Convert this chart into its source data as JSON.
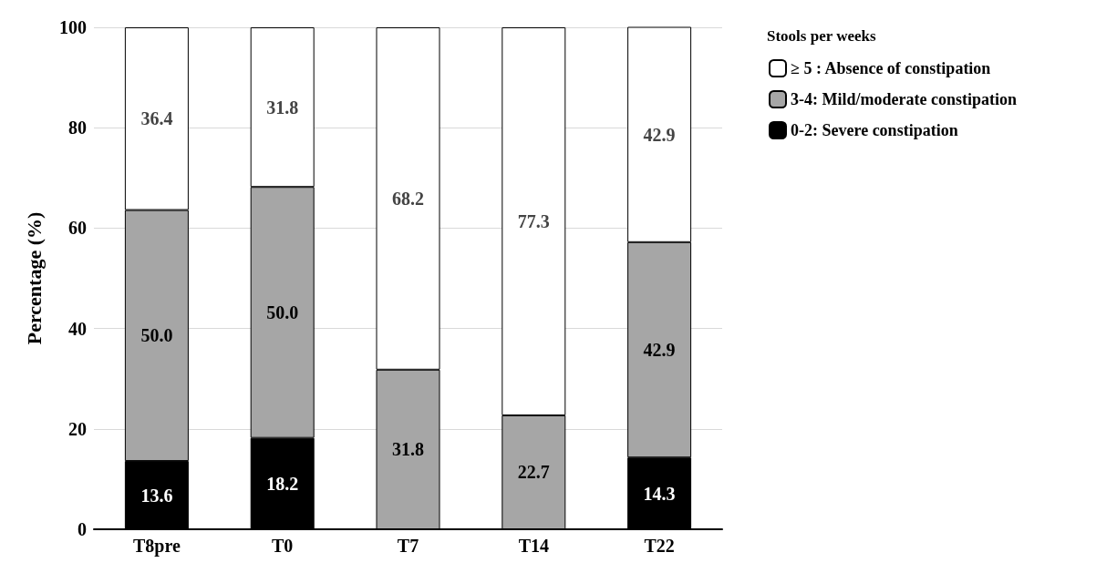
{
  "chart_data": {
    "type": "bar",
    "stacked": true,
    "ylabel": "Percentage (%)",
    "legend_title": "Stools per weeks",
    "legend": "top right",
    "grid": "y",
    "categories": [
      "T8pre",
      "T0",
      "T7",
      "T14",
      "T22"
    ],
    "ylim": [
      0,
      100
    ],
    "yticks": [
      0,
      20,
      40,
      60,
      80,
      100
    ],
    "series": [
      {
        "name": "0-2: Severe constipation",
        "color": "#000000",
        "values": [
          13.6,
          18.2,
          null,
          null,
          14.3
        ],
        "value_labels": [
          "13.6",
          "18.2",
          null,
          null,
          "14.3"
        ]
      },
      {
        "name": "3-4: Mild/moderate constipation",
        "color": "#a6a6a6",
        "values": [
          50,
          50,
          31.8,
          22.7,
          42.9
        ],
        "value_labels": [
          "50.0",
          "50.0",
          "31.8",
          "22.7",
          "42.9"
        ]
      },
      {
        "name": "≥ 5 : Absence of constipation",
        "color": "#ffffff",
        "values": [
          36.4,
          31.8,
          68.2,
          77.3,
          42.9
        ],
        "value_labels": [
          "36.4",
          "31.8",
          "68.2",
          "77.3",
          "42.9"
        ]
      }
    ]
  }
}
